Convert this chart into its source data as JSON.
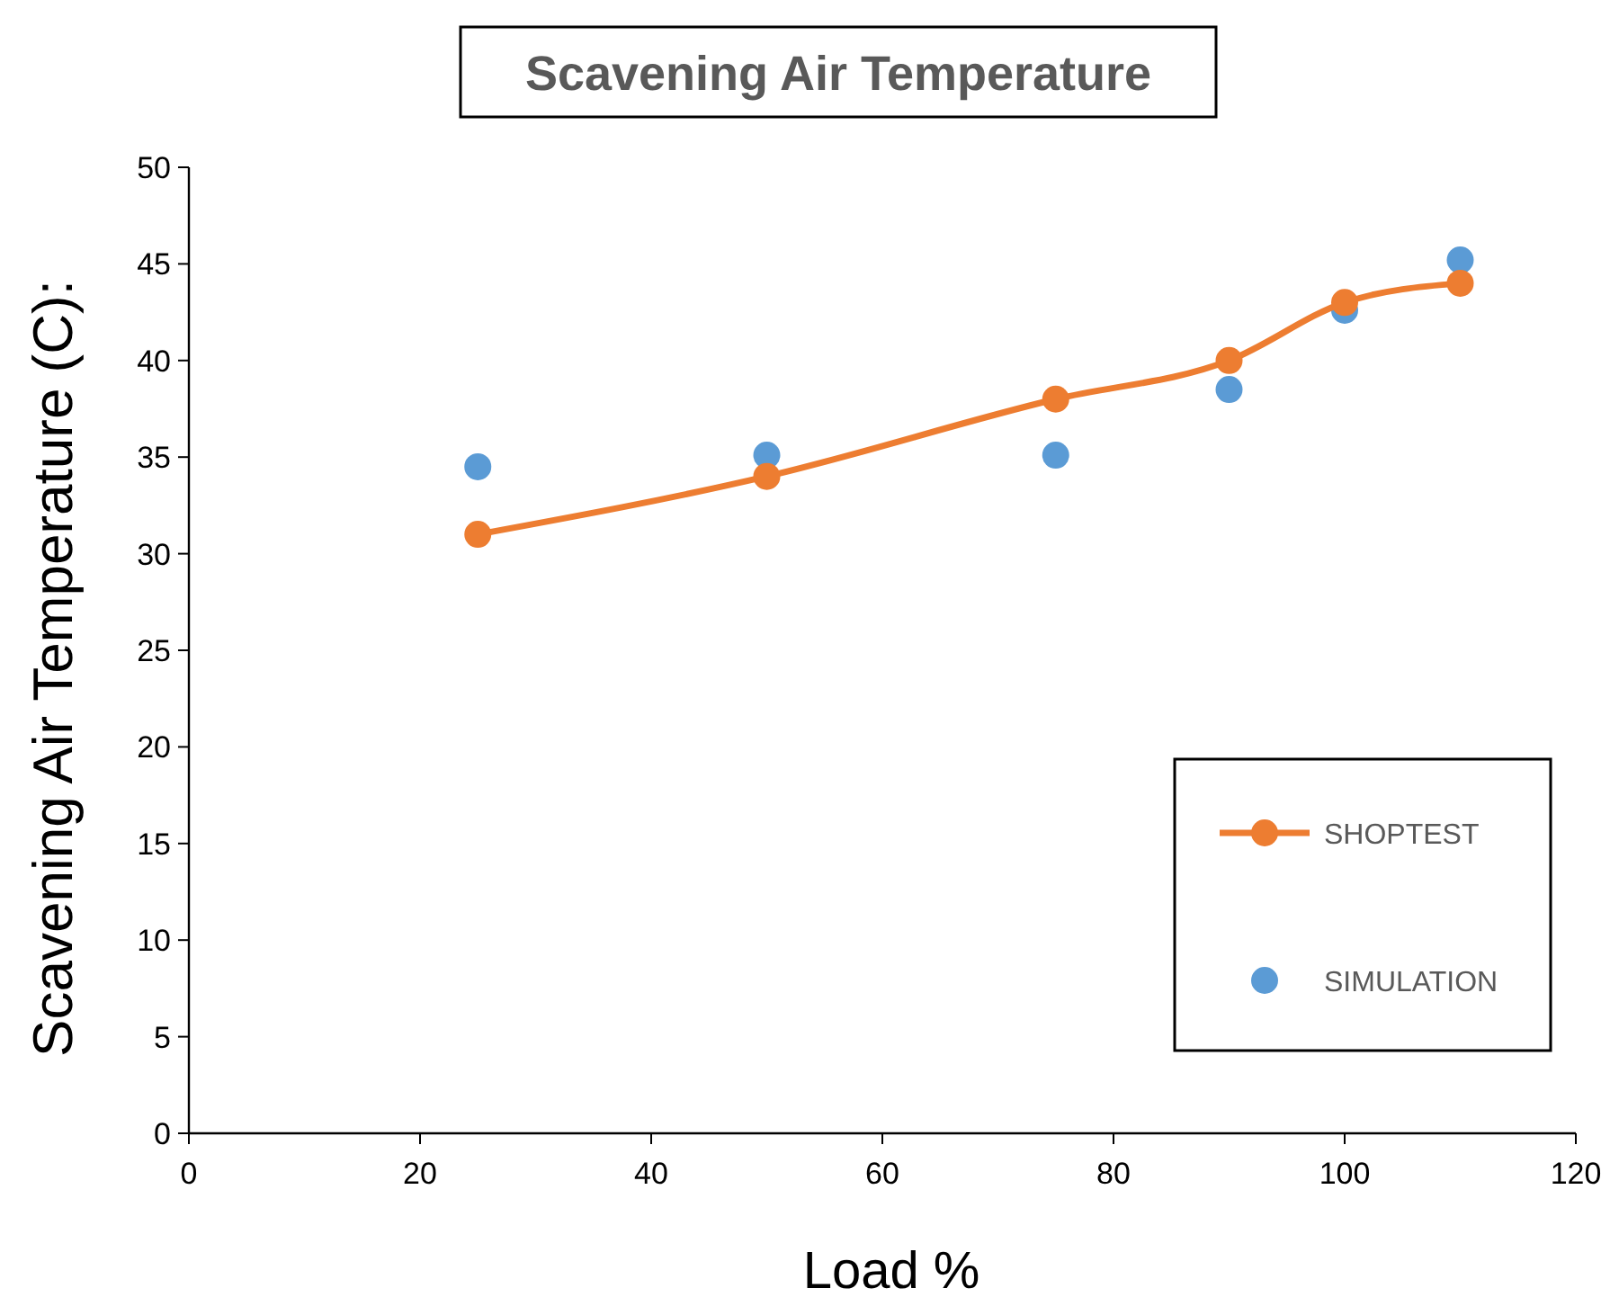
{
  "chart_data": {
    "type": "line",
    "title": "Scavening Air Temperature",
    "xlabel": "Load %",
    "ylabel": "Scavening Air Temperature (C):",
    "xlim": [
      0,
      120
    ],
    "xticks": [
      0,
      20,
      40,
      60,
      80,
      100,
      120
    ],
    "ylim": [
      0,
      50
    ],
    "yticks": [
      0,
      5,
      10,
      15,
      20,
      25,
      30,
      35,
      40,
      45,
      50
    ],
    "grid": false,
    "legend": "bottom right",
    "marker": "circle",
    "line_style": "solid",
    "series": [
      {
        "name": "SHOPTEST",
        "color": "#ed7d31",
        "x": [
          25,
          50,
          75,
          90,
          100,
          110
        ],
        "values": [
          31,
          34,
          38,
          40,
          43,
          44
        ]
      },
      {
        "name": "SIMULATION",
        "type": "scatter",
        "color": "#5b9bd5",
        "x": [
          25,
          50,
          75,
          90,
          100,
          110
        ],
        "values": [
          34.5,
          35.1,
          35.1,
          38.5,
          42.6,
          45.2
        ]
      }
    ]
  }
}
